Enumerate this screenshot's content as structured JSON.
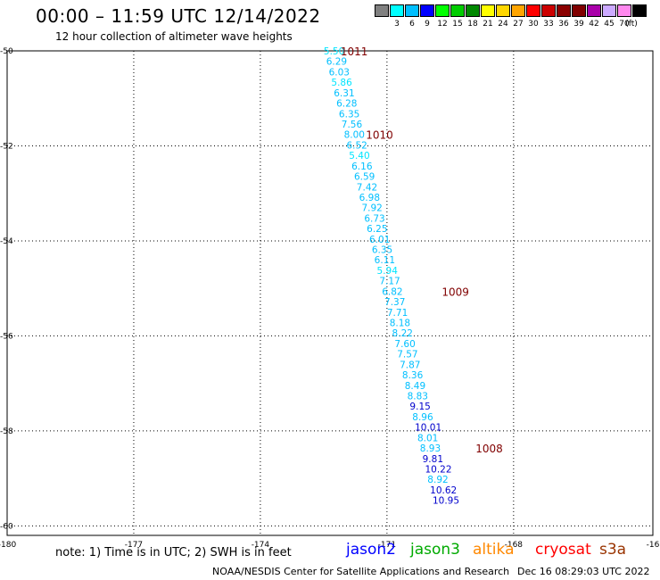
{
  "header": {
    "title": "00:00 – 11:59 UTC 12/14/2022",
    "subtitle": "12 hour collection of altimeter wave heights"
  },
  "legend": {
    "unit_label": "(ft)",
    "bins": [
      {
        "label": "",
        "color": "#808080"
      },
      {
        "label": "3",
        "color": "#00ffff"
      },
      {
        "label": "6",
        "color": "#00bfff"
      },
      {
        "label": "9",
        "color": "#0000ff"
      },
      {
        "label": "12",
        "color": "#00ff00"
      },
      {
        "label": "15",
        "color": "#00cc00"
      },
      {
        "label": "18",
        "color": "#008800"
      },
      {
        "label": "21",
        "color": "#ffff00"
      },
      {
        "label": "24",
        "color": "#ffd700"
      },
      {
        "label": "27",
        "color": "#ffa500"
      },
      {
        "label": "30",
        "color": "#ff0000"
      },
      {
        "label": "33",
        "color": "#cc0000"
      },
      {
        "label": "36",
        "color": "#8b0000"
      },
      {
        "label": "39",
        "color": "#800000"
      },
      {
        "label": "42",
        "color": "#aa00aa"
      },
      {
        "label": "45",
        "color": "#ccaaff"
      },
      {
        "label": "70",
        "color": "#ff88ee"
      },
      {
        "label": "",
        "color": "#000000"
      }
    ]
  },
  "map": {
    "lon_labels": [
      "-180",
      "-177",
      "-174",
      "-171",
      "-168",
      "-16"
    ],
    "lat_labels": [
      "-50",
      "-52",
      "-54",
      "-56",
      "-58",
      "-60"
    ],
    "grid_lons": [
      -177,
      -174,
      -171,
      -168
    ],
    "grid_lats": [
      -50,
      -52,
      -54,
      -56,
      -58,
      -60
    ],
    "track_points": [
      {
        "lon": -172.5,
        "lat": -50.0,
        "value": "5.50",
        "color": "#00e5ff"
      },
      {
        "lon": -172.44,
        "lat": -50.22,
        "value": "6.29",
        "color": "#00bfff"
      },
      {
        "lon": -172.38,
        "lat": -50.44,
        "value": "6.03",
        "color": "#00bfff"
      },
      {
        "lon": -172.32,
        "lat": -50.66,
        "value": "5.86",
        "color": "#00e5ff"
      },
      {
        "lon": -172.26,
        "lat": -50.88,
        "value": "6.31",
        "color": "#00bfff"
      },
      {
        "lon": -172.2,
        "lat": -51.1,
        "value": "6.28",
        "color": "#00bfff"
      },
      {
        "lon": -172.14,
        "lat": -51.32,
        "value": "6.35",
        "color": "#00bfff"
      },
      {
        "lon": -172.08,
        "lat": -51.54,
        "value": "7.56",
        "color": "#00bfff"
      },
      {
        "lon": -172.02,
        "lat": -51.76,
        "value": "8.00",
        "color": "#00bfff"
      },
      {
        "lon": -171.96,
        "lat": -51.98,
        "value": "6.52",
        "color": "#00bfff"
      },
      {
        "lon": -171.9,
        "lat": -52.2,
        "value": "5.40",
        "color": "#00e5ff"
      },
      {
        "lon": -171.84,
        "lat": -52.42,
        "value": "6.16",
        "color": "#00bfff"
      },
      {
        "lon": -171.78,
        "lat": -52.64,
        "value": "6.59",
        "color": "#00bfff"
      },
      {
        "lon": -171.72,
        "lat": -52.86,
        "value": "7.42",
        "color": "#00bfff"
      },
      {
        "lon": -171.66,
        "lat": -53.08,
        "value": "6.98",
        "color": "#00bfff"
      },
      {
        "lon": -171.6,
        "lat": -53.3,
        "value": "7.92",
        "color": "#00bfff"
      },
      {
        "lon": -171.54,
        "lat": -53.52,
        "value": "6.73",
        "color": "#00bfff"
      },
      {
        "lon": -171.48,
        "lat": -53.74,
        "value": "6.25",
        "color": "#00bfff"
      },
      {
        "lon": -171.42,
        "lat": -53.96,
        "value": "6.01",
        "color": "#00bfff"
      },
      {
        "lon": -171.36,
        "lat": -54.18,
        "value": "6.35",
        "color": "#00bfff"
      },
      {
        "lon": -171.3,
        "lat": -54.4,
        "value": "6.11",
        "color": "#00bfff"
      },
      {
        "lon": -171.24,
        "lat": -54.62,
        "value": "5.94",
        "color": "#00e5ff"
      },
      {
        "lon": -171.18,
        "lat": -54.84,
        "value": "7.17",
        "color": "#00bfff"
      },
      {
        "lon": -171.12,
        "lat": -55.06,
        "value": "6.82",
        "color": "#00bfff"
      },
      {
        "lon": -171.06,
        "lat": -55.28,
        "value": "7.37",
        "color": "#00bfff"
      },
      {
        "lon": -171.0,
        "lat": -55.5,
        "value": "7.71",
        "color": "#00bfff"
      },
      {
        "lon": -170.94,
        "lat": -55.72,
        "value": "8.18",
        "color": "#00bfff"
      },
      {
        "lon": -170.88,
        "lat": -55.94,
        "value": "8.22",
        "color": "#00bfff"
      },
      {
        "lon": -170.82,
        "lat": -56.16,
        "value": "7.60",
        "color": "#00bfff"
      },
      {
        "lon": -170.76,
        "lat": -56.38,
        "value": "7.57",
        "color": "#00bfff"
      },
      {
        "lon": -170.7,
        "lat": -56.6,
        "value": "7.87",
        "color": "#00bfff"
      },
      {
        "lon": -170.64,
        "lat": -56.82,
        "value": "8.36",
        "color": "#00bfff"
      },
      {
        "lon": -170.58,
        "lat": -57.04,
        "value": "8.49",
        "color": "#00bfff"
      },
      {
        "lon": -170.52,
        "lat": -57.26,
        "value": "8.83",
        "color": "#00bfff"
      },
      {
        "lon": -170.46,
        "lat": -57.48,
        "value": "9.15",
        "color": "#0000cc"
      },
      {
        "lon": -170.4,
        "lat": -57.7,
        "value": "8.96",
        "color": "#00bfff"
      },
      {
        "lon": -170.34,
        "lat": -57.92,
        "value": "10.01",
        "color": "#0000cc"
      },
      {
        "lon": -170.28,
        "lat": -58.14,
        "value": "8.01",
        "color": "#00bfff"
      },
      {
        "lon": -170.22,
        "lat": -58.36,
        "value": "8.93",
        "color": "#00bfff"
      },
      {
        "lon": -170.16,
        "lat": -58.58,
        "value": "9.81",
        "color": "#0000cc"
      },
      {
        "lon": -170.1,
        "lat": -58.8,
        "value": "10.22",
        "color": "#0000cc"
      },
      {
        "lon": -170.04,
        "lat": -59.02,
        "value": "8.92",
        "color": "#00bfff"
      },
      {
        "lon": -169.98,
        "lat": -59.24,
        "value": "10.62",
        "color": "#0000cc"
      },
      {
        "lon": -169.92,
        "lat": -59.46,
        "value": "10.95",
        "color": "#0000cc"
      }
    ],
    "pressure_labels": [
      {
        "label": "1011",
        "lon": -172.1,
        "lat": -50.0
      },
      {
        "label": "1010",
        "lon": -171.5,
        "lat": -51.76
      },
      {
        "label": "1009",
        "lon": -169.7,
        "lat": -55.06
      },
      {
        "label": "1008",
        "lon": -168.9,
        "lat": -58.36
      }
    ]
  },
  "footer": {
    "note": "note: 1) Time is in UTC; 2) SWH is in feet",
    "satellites": [
      {
        "name": "jason2",
        "color": "#0000ff"
      },
      {
        "name": "jason3",
        "color": "#00aa00"
      },
      {
        "name": "altika",
        "color": "#ff8800"
      },
      {
        "name": "cryosat",
        "color": "#ff0000"
      },
      {
        "name": "s3a",
        "color": "#993300"
      }
    ],
    "credit": "NOAA/NESDIS Center for Satellite Applications and Research",
    "timestamp": "Dec 16 08:29:03 UTC 2022"
  }
}
